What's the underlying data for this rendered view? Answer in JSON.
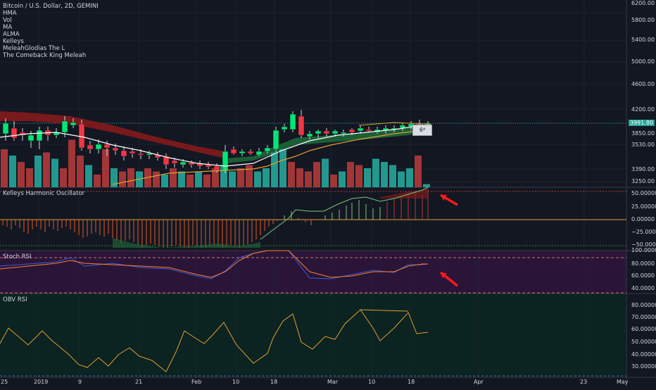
{
  "header": {
    "symbol_line": "Bitcoin / U.S. Dollar, 2D, GEMINI",
    "indicators": [
      "HMA",
      "Vol",
      "MA",
      "ALMA",
      "Kelleys",
      "MeleahGlodias The L",
      "The Comeback King Meleah"
    ]
  },
  "price_axis": {
    "labels": [
      "6200.00",
      "5800.00",
      "5400.00",
      "5000.00",
      "4600.00",
      "4200.00",
      "3850.00",
      "3530.00",
      "3390.00",
      "3250.00"
    ],
    "last_price": "3991.80"
  },
  "popup_label": "6ᵈ",
  "panes": {
    "kelleys": {
      "title": "Kelleys Harmonic Oscillator",
      "axis_labels": [
        "50.00000",
        "25.00000",
        "0.00000",
        "−25.00000",
        "−50.00000"
      ]
    },
    "stoch_rsi": {
      "title": "Stoch RSI",
      "axis_labels": [
        "100.0000",
        "80.0000",
        "60.0000",
        "40.0000"
      ]
    },
    "obv_rsi": {
      "title": "OBV RSI",
      "axis_labels": [
        "80.00000",
        "70.00000",
        "60.00000",
        "50.00000",
        "40.00000",
        "30.00000"
      ]
    }
  },
  "date_axis": {
    "labels": [
      "25",
      "2019",
      "9",
      "21",
      "Feb",
      "10",
      "18",
      "Mar",
      "10",
      "18",
      "Apr",
      "23",
      "May"
    ]
  },
  "colors": {
    "background": "#131722",
    "up_candle": "#00e676",
    "down_candle": "#f23645",
    "volume_up": "#26a69a",
    "volume_down": "#b23a3a",
    "red_band": "#8b1a1a",
    "green_band": "#1e6b3a",
    "alma": "#e0a030",
    "hma": "#ffffff",
    "stoch_k": "#3b5bdb",
    "stoch_d": "#ff7f2a",
    "obv": "#e0a030",
    "stoch_bg": "#2a1538",
    "obv_bg": "#0b2321",
    "arrow": "#ff1a1a"
  },
  "icons": [
    "red-arrow-icon",
    "red-arrow-icon"
  ]
}
